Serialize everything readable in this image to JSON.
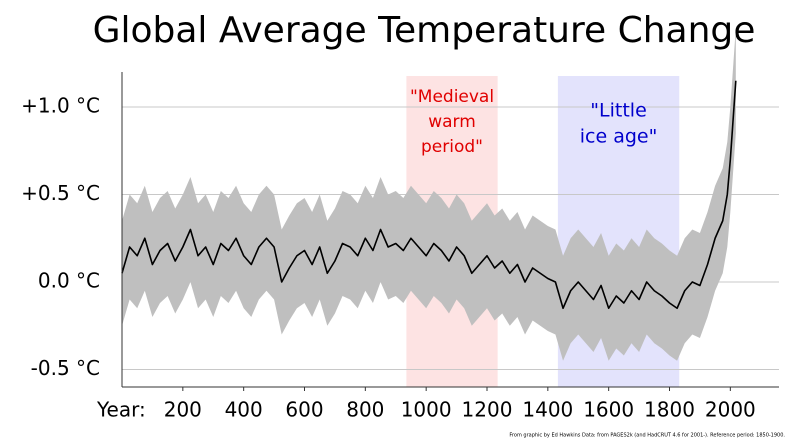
{
  "chart_data": {
    "type": "line",
    "title": "Global Average Temperature Change",
    "xlabel": "Year:",
    "footnote": "From graphic by Ed Hawkins   Data: from PAGES2k (and HadCRUT 4.6 for 2001-).  Reference period: 1850-1900.",
    "x": [
      0,
      25,
      50,
      75,
      100,
      125,
      150,
      175,
      200,
      225,
      250,
      275,
      300,
      325,
      350,
      375,
      400,
      425,
      450,
      475,
      500,
      525,
      550,
      575,
      600,
      625,
      650,
      675,
      700,
      725,
      750,
      775,
      800,
      825,
      850,
      875,
      900,
      925,
      950,
      975,
      1000,
      1025,
      1050,
      1075,
      1100,
      1125,
      1150,
      1175,
      1200,
      1225,
      1250,
      1275,
      1300,
      1325,
      1350,
      1375,
      1400,
      1425,
      1450,
      1475,
      1500,
      1525,
      1550,
      1575,
      1600,
      1625,
      1650,
      1675,
      1700,
      1725,
      1750,
      1775,
      1800,
      1825,
      1850,
      1875,
      1900,
      1925,
      1950,
      1975,
      1990,
      2000,
      2010,
      2018
    ],
    "series": [
      {
        "color": "#000000",
        "band_color": "#bfbfbf",
        "band_halfwidth": 0.3,
        "values": [
          0.05,
          0.2,
          0.15,
          0.25,
          0.1,
          0.18,
          0.22,
          0.12,
          0.2,
          0.3,
          0.15,
          0.2,
          0.1,
          0.22,
          0.18,
          0.25,
          0.15,
          0.1,
          0.2,
          0.25,
          0.2,
          0.0,
          0.08,
          0.15,
          0.18,
          0.1,
          0.2,
          0.05,
          0.12,
          0.22,
          0.2,
          0.15,
          0.25,
          0.18,
          0.3,
          0.2,
          0.22,
          0.18,
          0.25,
          0.2,
          0.15,
          0.22,
          0.18,
          0.12,
          0.2,
          0.15,
          0.05,
          0.1,
          0.15,
          0.08,
          0.12,
          0.05,
          0.1,
          0.0,
          0.08,
          0.05,
          0.02,
          0.0,
          -0.15,
          -0.05,
          0.0,
          -0.05,
          -0.1,
          -0.02,
          -0.15,
          -0.08,
          -0.12,
          -0.05,
          -0.1,
          0.0,
          -0.05,
          -0.08,
          -0.12,
          -0.15,
          -0.05,
          0.0,
          -0.02,
          0.1,
          0.25,
          0.35,
          0.5,
          0.7,
          0.95,
          1.15
        ]
      }
    ],
    "regions": [
      {
        "lines": [
          "\"Medieval",
          "warm",
          "period\""
        ],
        "start": 935,
        "end": 1235,
        "color": "#fde3e3",
        "text_color": "#e00000"
      },
      {
        "lines": [
          "\"Little",
          "ice age\""
        ],
        "start": 1433,
        "end": 1832,
        "color": "#e3e3fc",
        "text_color": "#0000cc"
      }
    ],
    "xlim": [
      0,
      2160
    ],
    "ylim": [
      -0.6,
      1.2
    ],
    "xticks": [
      200,
      400,
      600,
      800,
      1000,
      1200,
      1400,
      1600,
      1800,
      2000
    ],
    "yticks": [
      {
        "value": 1.0,
        "label": "+1.0 °C"
      },
      {
        "value": 0.5,
        "label": "+0.5 °C"
      },
      {
        "value": 0.0,
        "label": "0.0 °C"
      },
      {
        "value": -0.5,
        "label": "-0.5 °C"
      }
    ],
    "grid": true
  }
}
